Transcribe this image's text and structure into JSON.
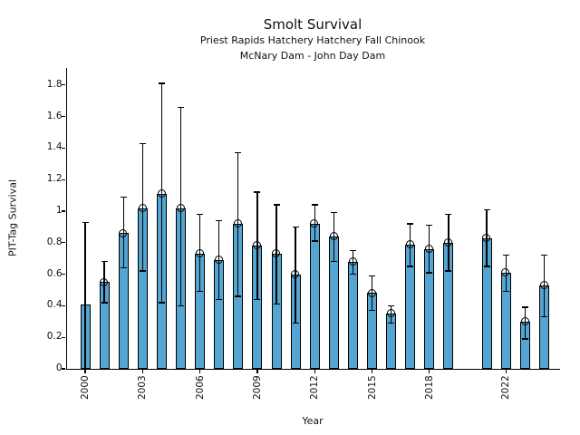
{
  "chart_data": {
    "type": "bar",
    "title": "Smolt Survival",
    "subtitle1": "Priest Rapids Hatchery Hatchery Fall Chinook",
    "subtitle2": "McNary Dam - John Day Dam",
    "xlabel": "Year",
    "ylabel": "PIT-Tag Survival",
    "ylim": [
      0,
      1.9
    ],
    "grid": false,
    "legend": "none",
    "bar_color": "#55a5d2",
    "bar_edge_color": "#000000",
    "error_bar_color": "#000000",
    "ytick_labels": [
      "0",
      "0.2",
      "0.4",
      "0.6",
      "0.8",
      "1",
      "1.2",
      "1.4",
      "1.6",
      "1.8"
    ],
    "ytick_values": [
      0,
      0.2,
      0.4,
      0.6,
      0.8,
      1.0,
      1.2,
      1.4,
      1.6,
      1.8
    ],
    "xtick_years": [
      2000,
      2003,
      2006,
      2009,
      2012,
      2015,
      2018,
      2022
    ],
    "series": [
      {
        "name": "PIT-Tag Survival",
        "points": [
          {
            "year": 2000,
            "value": 0.41,
            "err_lo": 0.0,
            "err_hi": 0.93,
            "cap_lo": false,
            "marker": false
          },
          {
            "year": 2001,
            "value": 0.55,
            "err_lo": 0.42,
            "err_hi": 0.68,
            "cap_lo": true,
            "marker": true
          },
          {
            "year": 2002,
            "value": 0.86,
            "err_lo": 0.64,
            "err_hi": 1.09,
            "cap_lo": true,
            "marker": true
          },
          {
            "year": 2003,
            "value": 1.02,
            "err_lo": 0.62,
            "err_hi": 1.43,
            "cap_lo": true,
            "marker": true
          },
          {
            "year": 2004,
            "value": 1.11,
            "err_lo": 0.42,
            "err_hi": 1.81,
            "cap_lo": true,
            "marker": true
          },
          {
            "year": 2005,
            "value": 1.02,
            "err_lo": 0.4,
            "err_hi": 1.66,
            "cap_lo": true,
            "marker": true
          },
          {
            "year": 2006,
            "value": 0.73,
            "err_lo": 0.49,
            "err_hi": 0.98,
            "cap_lo": true,
            "marker": true
          },
          {
            "year": 2007,
            "value": 0.69,
            "err_lo": 0.44,
            "err_hi": 0.94,
            "cap_lo": true,
            "marker": true
          },
          {
            "year": 2008,
            "value": 0.92,
            "err_lo": 0.46,
            "err_hi": 1.37,
            "cap_lo": true,
            "marker": true
          },
          {
            "year": 2009,
            "value": 0.78,
            "err_lo": 0.44,
            "err_hi": 1.12,
            "cap_lo": true,
            "marker": true
          },
          {
            "year": 2010,
            "value": 0.73,
            "err_lo": 0.41,
            "err_hi": 1.04,
            "cap_lo": true,
            "marker": true
          },
          {
            "year": 2011,
            "value": 0.6,
            "err_lo": 0.29,
            "err_hi": 0.9,
            "cap_lo": true,
            "marker": true
          },
          {
            "year": 2012,
            "value": 0.92,
            "err_lo": 0.81,
            "err_hi": 1.04,
            "cap_lo": true,
            "marker": true
          },
          {
            "year": 2013,
            "value": 0.84,
            "err_lo": 0.68,
            "err_hi": 0.99,
            "cap_lo": true,
            "marker": true
          },
          {
            "year": 2014,
            "value": 0.68,
            "err_lo": 0.6,
            "err_hi": 0.75,
            "cap_lo": true,
            "marker": true
          },
          {
            "year": 2015,
            "value": 0.48,
            "err_lo": 0.37,
            "err_hi": 0.59,
            "cap_lo": true,
            "marker": true
          },
          {
            "year": 2016,
            "value": 0.35,
            "err_lo": 0.29,
            "err_hi": 0.4,
            "cap_lo": true,
            "marker": true
          },
          {
            "year": 2017,
            "value": 0.79,
            "err_lo": 0.65,
            "err_hi": 0.92,
            "cap_lo": true,
            "marker": true
          },
          {
            "year": 2018,
            "value": 0.76,
            "err_lo": 0.61,
            "err_hi": 0.91,
            "cap_lo": true,
            "marker": true
          },
          {
            "year": 2019,
            "value": 0.8,
            "err_lo": 0.62,
            "err_hi": 0.98,
            "cap_lo": true,
            "marker": true
          },
          {
            "year": 2021,
            "value": 0.83,
            "err_lo": 0.65,
            "err_hi": 1.01,
            "cap_lo": true,
            "marker": true
          },
          {
            "year": 2022,
            "value": 0.61,
            "err_lo": 0.49,
            "err_hi": 0.72,
            "cap_lo": true,
            "marker": true
          },
          {
            "year": 2023,
            "value": 0.3,
            "err_lo": 0.19,
            "err_hi": 0.39,
            "cap_lo": true,
            "marker": true
          },
          {
            "year": 2024,
            "value": 0.53,
            "err_lo": 0.33,
            "err_hi": 0.72,
            "cap_lo": true,
            "marker": true
          }
        ]
      }
    ]
  }
}
